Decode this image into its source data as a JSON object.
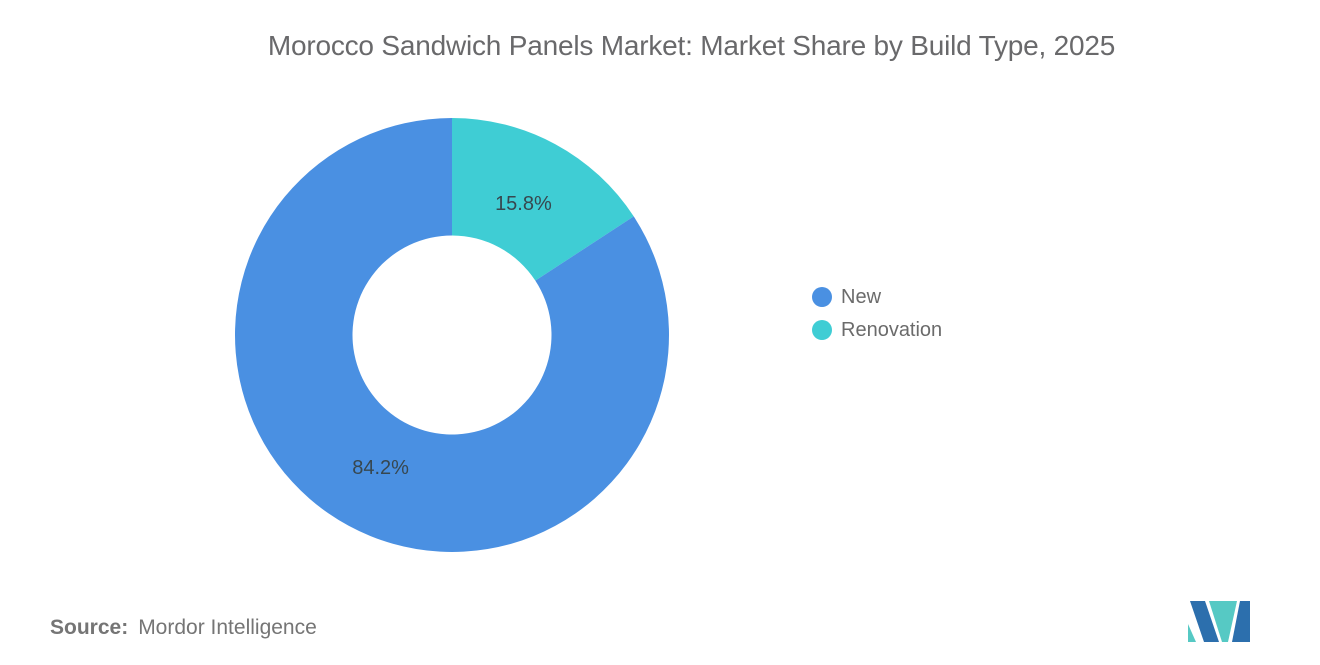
{
  "page": {
    "title": "Morocco Sandwich Panels Market: Market Share by Build Type, 2025",
    "background": "#FFFFFF"
  },
  "chart_data": {
    "type": "pie",
    "donut": true,
    "title": "Morocco Sandwich Panels Market: Market Share by Build Type, 2025",
    "categories": [
      "New",
      "Renovation"
    ],
    "values": [
      84.2,
      15.8
    ],
    "labels": [
      "84.2%",
      "15.8%"
    ],
    "colors": [
      "#4A90E2",
      "#3FCDD4"
    ],
    "unit": "%",
    "label_color": "#37474F",
    "legend_position": "right",
    "start_at_top": true
  },
  "legend": {
    "items": [
      {
        "label": "New",
        "color": "#4A90E2"
      },
      {
        "label": "Renovation",
        "color": "#3FCDD4"
      }
    ]
  },
  "source": {
    "label": "Source:",
    "value": "Mordor Intelligence"
  },
  "footer_logo": {
    "name": "mordor-intelligence-logo",
    "colors": {
      "blue": "#2C6FAD",
      "teal": "#56C9C4"
    }
  }
}
